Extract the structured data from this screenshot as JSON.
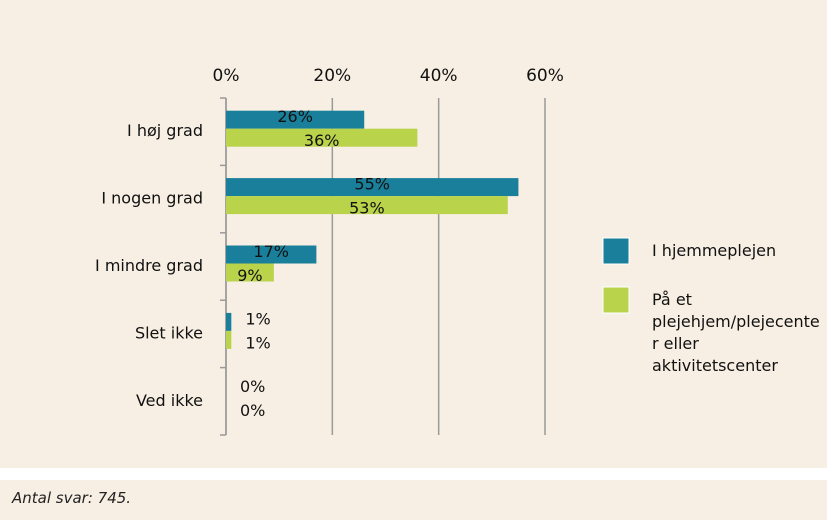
{
  "chart_data": {
    "type": "bar",
    "orientation": "horizontal",
    "categories": [
      "I høj grad",
      "I nogen grad",
      "I mindre grad",
      "Slet ikke",
      "Ved ikke"
    ],
    "series": [
      {
        "name": "I hjemmeplejen",
        "color": "#1a7f9a",
        "values": [
          26,
          55,
          17,
          1,
          0
        ],
        "value_labels": [
          "26%",
          "55%",
          "17%",
          "1%",
          "0%"
        ]
      },
      {
        "name": "På et plejehjem/plejecenter eller aktivitetscenter",
        "color": "#b9d34b",
        "values": [
          36,
          53,
          9,
          1,
          0
        ],
        "value_labels": [
          "36%",
          "53%",
          "9%",
          "1%",
          "0%"
        ]
      }
    ],
    "xlim": [
      0,
      60
    ],
    "xticks": [
      {
        "value": 0,
        "label": "0%"
      },
      {
        "value": 20,
        "label": "20%"
      },
      {
        "value": 40,
        "label": "40%"
      },
      {
        "value": 60,
        "label": "60%"
      }
    ],
    "grid": true,
    "legend": "right",
    "note": "Antal svar: 745."
  }
}
